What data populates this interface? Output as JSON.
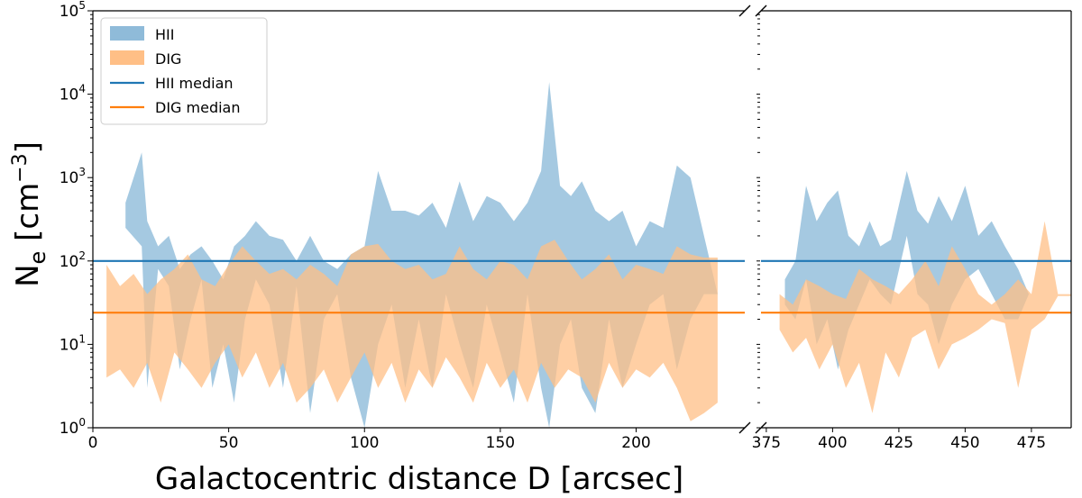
{
  "chart_data": {
    "type": "area",
    "xlabel": "Galactocentric distance D [arcsec]",
    "ylabel_main": "N",
    "ylabel_sub": "e",
    "ylabel_unit_open": " [cm",
    "ylabel_unit_sup": "−3",
    "ylabel_unit_close": "]",
    "yscale": "log",
    "ylim": [
      1,
      100000
    ],
    "y_ticks": [
      {
        "base": "10",
        "exp": "0",
        "value": 1
      },
      {
        "base": "10",
        "exp": "1",
        "value": 10
      },
      {
        "base": "10",
        "exp": "2",
        "value": 100
      },
      {
        "base": "10",
        "exp": "3",
        "value": 1000
      },
      {
        "base": "10",
        "exp": "4",
        "value": 10000
      },
      {
        "base": "10",
        "exp": "5",
        "value": 100000
      }
    ],
    "broken_axis": true,
    "panels": [
      {
        "xlim": [
          0,
          240
        ],
        "x_ticks": [
          "0",
          "50",
          "100",
          "150",
          "200"
        ],
        "x_tick_values": [
          0,
          50,
          100,
          150,
          200
        ]
      },
      {
        "xlim": [
          373,
          490
        ],
        "x_ticks": [
          "375",
          "400",
          "425",
          "450",
          "475"
        ],
        "x_tick_values": [
          375,
          400,
          425,
          450,
          475
        ]
      }
    ],
    "legend": {
      "position": "upper-left",
      "entries": [
        {
          "label": "HII",
          "kind": "patch",
          "color": "#8fbbd9"
        },
        {
          "label": "DIG",
          "kind": "patch",
          "color": "#ffbf86"
        },
        {
          "label": "HII median",
          "kind": "line",
          "color": "#1f77b4"
        },
        {
          "label": "DIG median",
          "kind": "line",
          "color": "#ff7f0e"
        }
      ]
    },
    "series": [
      {
        "name": "HII median",
        "kind": "hline",
        "value": 100,
        "color": "#1f77b4"
      },
      {
        "name": "DIG median",
        "kind": "hline",
        "value": 24,
        "color": "#ff7f0e"
      },
      {
        "name": "HII",
        "kind": "band",
        "color": "#8fbbd9",
        "opacity": 0.8,
        "x": [
          12,
          18,
          20,
          24,
          28,
          32,
          36,
          40,
          44,
          48,
          52,
          56,
          60,
          65,
          70,
          75,
          80,
          85,
          90,
          95,
          100,
          105,
          110,
          115,
          120,
          125,
          130,
          135,
          140,
          145,
          150,
          155,
          160,
          165,
          168,
          172,
          176,
          180,
          185,
          190,
          195,
          200,
          205,
          210,
          215,
          220,
          225,
          230
        ],
        "low": [
          250,
          150,
          3,
          80,
          50,
          5,
          20,
          60,
          3,
          10,
          2,
          20,
          60,
          30,
          3,
          50,
          1.5,
          20,
          40,
          4,
          1,
          10,
          30,
          3,
          20,
          3,
          40,
          10,
          3,
          30,
          8,
          2,
          40,
          3,
          1,
          10,
          20,
          3,
          1.5,
          20,
          3,
          10,
          30,
          40,
          5,
          20,
          40,
          40
        ],
        "high": [
          500,
          2000,
          300,
          150,
          200,
          80,
          120,
          150,
          100,
          60,
          150,
          200,
          300,
          200,
          180,
          100,
          200,
          100,
          80,
          120,
          150,
          1200,
          400,
          400,
          350,
          500,
          250,
          900,
          300,
          600,
          500,
          300,
          500,
          1200,
          14000,
          800,
          600,
          900,
          400,
          300,
          400,
          150,
          300,
          250,
          1400,
          1000,
          200,
          40
        ]
      },
      {
        "name": "DIG",
        "kind": "band",
        "color": "#ffbf86",
        "opacity": 0.75,
        "x": [
          5,
          10,
          15,
          20,
          25,
          30,
          35,
          40,
          45,
          50,
          55,
          60,
          65,
          70,
          75,
          80,
          85,
          90,
          95,
          100,
          105,
          110,
          115,
          120,
          125,
          130,
          135,
          140,
          145,
          150,
          155,
          160,
          165,
          170,
          175,
          180,
          185,
          190,
          195,
          200,
          205,
          210,
          215,
          220,
          225,
          230
        ],
        "low": [
          4,
          5,
          3,
          6,
          2,
          8,
          5,
          3,
          6,
          10,
          4,
          8,
          3,
          6,
          2,
          3,
          5,
          2,
          4,
          8,
          3,
          6,
          2,
          5,
          3,
          7,
          4,
          2,
          6,
          3,
          5,
          2,
          6,
          3,
          5,
          4,
          2,
          6,
          3,
          5,
          4,
          6,
          3,
          1.2,
          1.5,
          2
        ],
        "high": [
          90,
          50,
          70,
          40,
          60,
          80,
          120,
          60,
          50,
          90,
          150,
          100,
          70,
          80,
          60,
          90,
          70,
          50,
          120,
          150,
          160,
          100,
          80,
          90,
          60,
          70,
          150,
          80,
          60,
          100,
          90,
          60,
          150,
          180,
          100,
          60,
          80,
          120,
          60,
          90,
          80,
          70,
          150,
          120,
          110,
          110
        ]
      },
      {
        "name": "HII",
        "kind": "band",
        "color": "#8fbbd9",
        "opacity": 0.8,
        "x": [
          382,
          386,
          390,
          394,
          398,
          402,
          406,
          410,
          414,
          418,
          422,
          428,
          432,
          436,
          440,
          445,
          450,
          455,
          460,
          465,
          470,
          474,
          478
        ],
        "low": [
          30,
          20,
          60,
          10,
          20,
          5,
          15,
          30,
          60,
          40,
          30,
          200,
          40,
          30,
          10,
          30,
          60,
          80,
          40,
          20,
          20,
          40,
          40
        ],
        "high": [
          60,
          100,
          800,
          300,
          500,
          700,
          200,
          150,
          300,
          150,
          180,
          1200,
          400,
          280,
          600,
          300,
          800,
          200,
          300,
          150,
          80,
          40,
          40
        ]
      },
      {
        "name": "DIG",
        "kind": "band",
        "color": "#ffbf86",
        "opacity": 0.75,
        "x": [
          380,
          385,
          390,
          395,
          400,
          405,
          410,
          415,
          420,
          425,
          430,
          435,
          440,
          445,
          450,
          455,
          460,
          465,
          470,
          475,
          480,
          485,
          490
        ],
        "low": [
          15,
          8,
          12,
          5,
          10,
          3,
          6,
          1.5,
          8,
          4,
          12,
          15,
          5,
          10,
          12,
          15,
          20,
          18,
          3,
          15,
          20,
          38,
          38
        ],
        "high": [
          40,
          30,
          60,
          50,
          40,
          35,
          80,
          60,
          50,
          40,
          60,
          100,
          50,
          150,
          80,
          40,
          30,
          40,
          60,
          40,
          300,
          40,
          40
        ]
      }
    ]
  }
}
